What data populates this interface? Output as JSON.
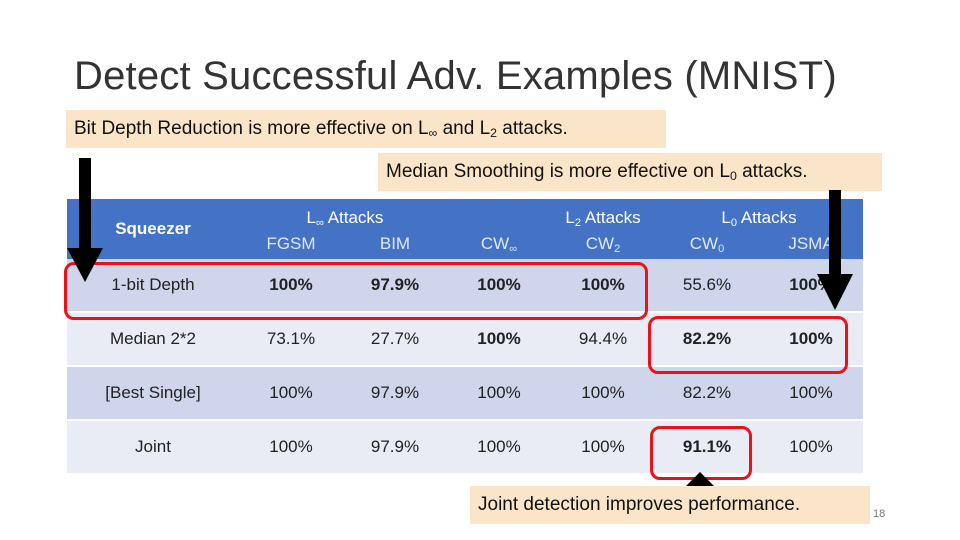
{
  "title": "Detect Successful Adv. Examples (MNIST)",
  "callouts": {
    "bit_depth_pre": "Bit Depth Reduction is more effective on L",
    "bit_depth_sub1": "∞",
    "bit_depth_mid": " and L",
    "bit_depth_sub2": "2",
    "bit_depth_post": " attacks.",
    "median_pre": "Median Smoothing is more effective on L",
    "median_sub": "0",
    "median_post": " attacks.",
    "joint": "Joint detection improves performance."
  },
  "table": {
    "squeezer_label": "Squeezer",
    "group_linf": "L",
    "group_linf_sub": "∞",
    "group_linf_rest": " Attacks",
    "group_l2": "L",
    "group_l2_sub": "2",
    "group_l2_rest": " Attacks",
    "group_l0": "L",
    "group_l0_sub": "0",
    "group_l0_rest": " Attacks",
    "col_fgsm": "FGSM",
    "col_bim": "BIM",
    "col_cwinf": "CW",
    "col_cwinf_sub": "∞",
    "col_cw2": "CW",
    "col_cw2_sub": "2",
    "col_cw0": "CW",
    "col_cw0_sub": "0",
    "col_jsma": "JSMA",
    "rows": [
      {
        "label": "1-bit Depth",
        "v": [
          "100%",
          "97.9%",
          "100%",
          "100%",
          "55.6%",
          "100%"
        ]
      },
      {
        "label": "Median 2*2",
        "v": [
          "73.1%",
          "27.7%",
          "100%",
          "94.4%",
          "82.2%",
          "100%"
        ]
      },
      {
        "label": "[Best Single]",
        "v": [
          "100%",
          "97.9%",
          "100%",
          "100%",
          "82.2%",
          "100%"
        ]
      },
      {
        "label": "Joint",
        "v": [
          "100%",
          "97.9%",
          "100%",
          "100%",
          "91.1%",
          "100%"
        ]
      }
    ]
  },
  "page_number": "18"
}
